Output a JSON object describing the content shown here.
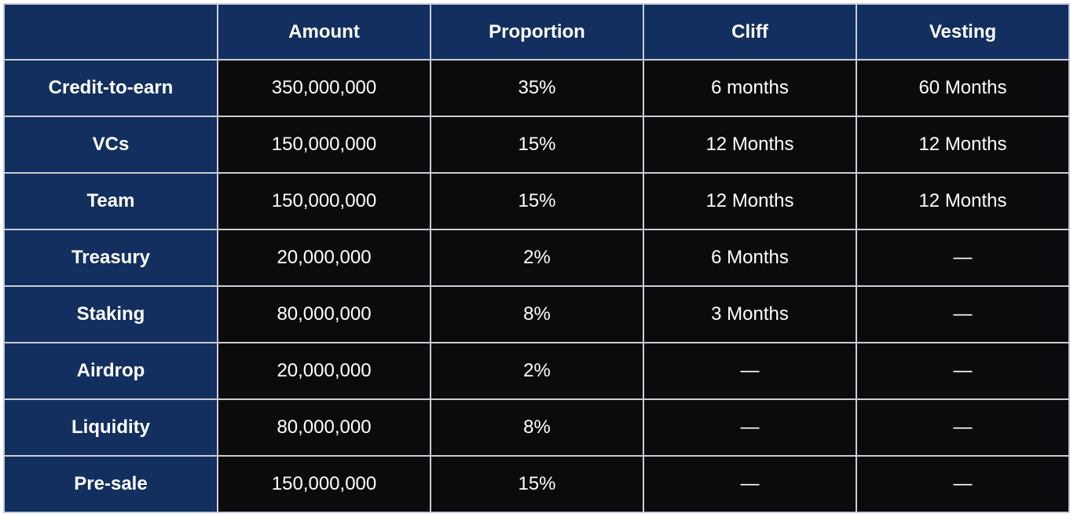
{
  "table": {
    "headers": [
      "",
      "Amount",
      "Proportion",
      "Cliff",
      "Vesting"
    ],
    "rows": [
      {
        "label": "Credit-to-earn",
        "amount": "350,000,000",
        "proportion": "35%",
        "cliff": "6 months",
        "vesting": "60 Months"
      },
      {
        "label": "VCs",
        "amount": "150,000,000",
        "proportion": "15%",
        "cliff": "12 Months",
        "vesting": "12 Months"
      },
      {
        "label": "Team",
        "amount": "150,000,000",
        "proportion": "15%",
        "cliff": "12 Months",
        "vesting": "12 Months"
      },
      {
        "label": "Treasury",
        "amount": "20,000,000",
        "proportion": "2%",
        "cliff": "6 Months",
        "vesting": "—"
      },
      {
        "label": "Staking",
        "amount": "80,000,000",
        "proportion": "8%",
        "cliff": "3 Months",
        "vesting": "—"
      },
      {
        "label": "Airdrop",
        "amount": "20,000,000",
        "proportion": "2%",
        "cliff": "—",
        "vesting": "—"
      },
      {
        "label": "Liquidity",
        "amount": "80,000,000",
        "proportion": "8%",
        "cliff": "—",
        "vesting": "—"
      },
      {
        "label": "Pre-sale",
        "amount": "150,000,000",
        "proportion": "15%",
        "cliff": "—",
        "vesting": "—"
      }
    ]
  },
  "colors": {
    "header_bg": "#132f5f",
    "cell_bg": "#0b0b0d",
    "grid": "#c9cdd6",
    "text": "#ffffff"
  }
}
